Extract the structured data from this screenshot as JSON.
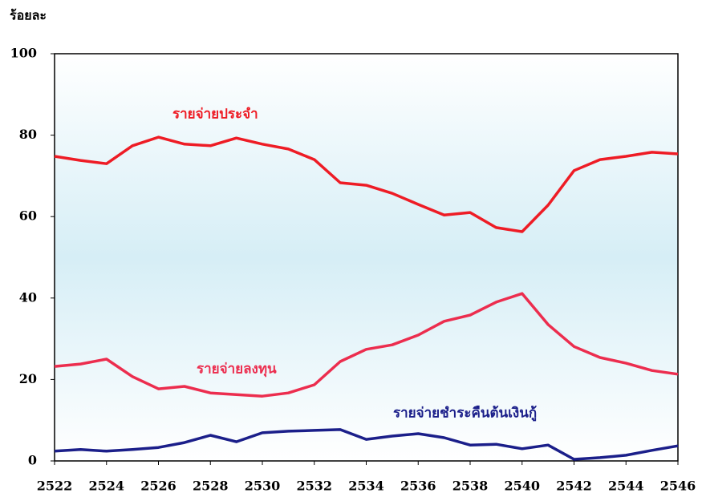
{
  "chart_data": {
    "type": "line",
    "y_label": "ร้อยละ",
    "x": [
      2522,
      2523,
      2524,
      2525,
      2526,
      2527,
      2528,
      2529,
      2530,
      2531,
      2532,
      2533,
      2534,
      2535,
      2536,
      2537,
      2538,
      2539,
      2540,
      2541,
      2542,
      2543,
      2544,
      2545,
      2546
    ],
    "xlim": [
      2522,
      2546
    ],
    "xticks": [
      2522,
      2524,
      2526,
      2528,
      2530,
      2532,
      2534,
      2536,
      2538,
      2540,
      2542,
      2544,
      2546
    ],
    "ylim": [
      0,
      100
    ],
    "yticks": [
      0,
      20,
      40,
      60,
      80,
      100
    ],
    "series": [
      {
        "name": "รายจ่ายประจำ",
        "color": "#ee1c25",
        "values": [
          74.8,
          73.8,
          73,
          77.4,
          79.5,
          77.8,
          77.4,
          79.3,
          77.8,
          76.6,
          74,
          68.3,
          67.7,
          65.7,
          63,
          60.4,
          61,
          57.3,
          56.3,
          62.8,
          71.3,
          74,
          74.8,
          75.8,
          75.4
        ]
      },
      {
        "name": "รายจ่ายลงทุน",
        "color": "#ec2d4e",
        "values": [
          23.2,
          23.8,
          25,
          20.7,
          17.7,
          18.3,
          16.7,
          16.3,
          15.9,
          16.7,
          18.7,
          24.4,
          27.4,
          28.5,
          30.9,
          34.3,
          35.8,
          39,
          41.1,
          33.5,
          28.1,
          25.4,
          24,
          22.2,
          21.3
        ]
      },
      {
        "name": "รายจ่ายชำระคืนต้นเงินกู้",
        "color": "#1b1f8a",
        "values": [
          2.4,
          2.8,
          2.4,
          2.8,
          3.3,
          4.5,
          6.3,
          4.7,
          6.9,
          7.3,
          7.5,
          7.7,
          5.3,
          6.1,
          6.7,
          5.7,
          3.9,
          4.1,
          3,
          3.9,
          0.4,
          0.8,
          1.4,
          2.6,
          3.7
        ]
      }
    ]
  }
}
